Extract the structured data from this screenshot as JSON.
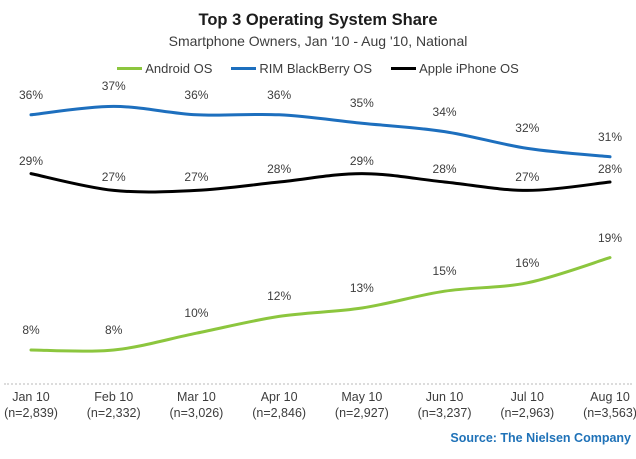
{
  "chart_data": {
    "type": "line",
    "title": "Top 3 Operating System Share",
    "subtitle": "Smartphone Owners, Jan '10 - Aug '10, National",
    "unit": "%",
    "categories": [
      "Jan 10",
      "Feb 10",
      "Mar 10",
      "Apr 10",
      "May 10",
      "Jun 10",
      "Jul 10",
      "Aug 10"
    ],
    "sample_sizes": [
      "(n=2,839)",
      "(n=2,332)",
      "(n=3,026)",
      "(n=2,846)",
      "(n=2,927)",
      "(n=3,237)",
      "(n=2,963)",
      "(n=3,563)"
    ],
    "series": [
      {
        "name": "Android OS",
        "color": "#8CC63E",
        "values": [
          8,
          8,
          10,
          12,
          13,
          15,
          16,
          19
        ]
      },
      {
        "name": "RIM BlackBerry OS",
        "color": "#1D6FBE",
        "values": [
          36,
          37,
          36,
          36,
          35,
          34,
          32,
          31
        ]
      },
      {
        "name": "Apple iPhone OS",
        "color": "#000000",
        "values": [
          29,
          27,
          27,
          28,
          29,
          28,
          27,
          28
        ]
      }
    ],
    "ylim": [
      0,
      40
    ],
    "grid": false,
    "legend_position": "top",
    "data_labels": true
  },
  "source": {
    "label": "Source: The Nielsen Company",
    "color": "#1F72B8"
  }
}
